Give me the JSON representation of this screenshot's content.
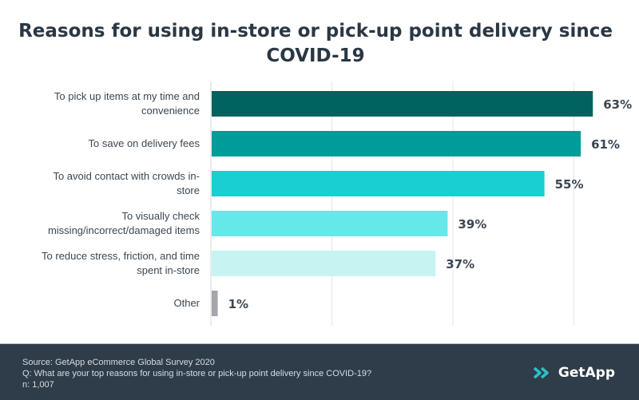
{
  "title": {
    "line1": "Reasons for using in-store or pick-up point delivery since",
    "line2": "COVID-19"
  },
  "chart_data": {
    "type": "bar",
    "orientation": "horizontal",
    "title": "Reasons for using in-store or pick-up point delivery since COVID-19",
    "categories": [
      [
        "To pick up items at my time and",
        "convenience"
      ],
      [
        "To save on delivery fees"
      ],
      [
        "To avoid contact with crowds in-",
        "store"
      ],
      [
        "To visually check",
        "missing/incorrect/damaged items"
      ],
      [
        "To reduce stress, friction, and time",
        "spent in-store"
      ],
      [
        "Other"
      ]
    ],
    "values": [
      63,
      61,
      55,
      39,
      37,
      1
    ],
    "value_labels": [
      "63%",
      "61%",
      "55%",
      "39%",
      "37%",
      "1%"
    ],
    "colors": [
      "#00635f",
      "#009c9a",
      "#19cfd1",
      "#64e8ea",
      "#c5f4f3",
      "#a3a7ab"
    ],
    "xlim": [
      0,
      60
    ],
    "grid": true,
    "unit": "%"
  },
  "footer": {
    "source": "Source: GetApp eCommerce Global Survey 2020",
    "question": "Q: What are your top reasons for using in-store or pick-up point delivery since COVID-19?",
    "n": "n: 1,007",
    "logo_text": "GetApp",
    "logo_icon": "getapp-chevrons-icon",
    "logo_color": "#28c2c5"
  }
}
